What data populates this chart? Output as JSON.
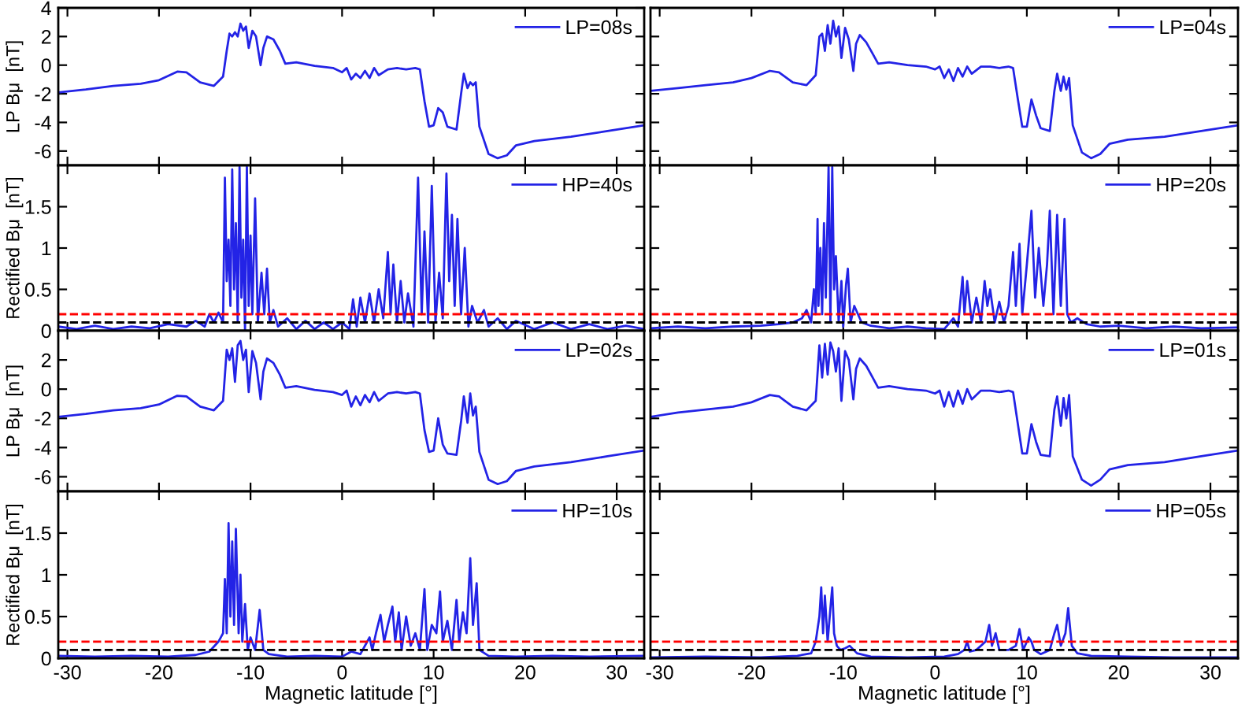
{
  "chart_data": [
    {
      "type": "line",
      "ylabel": "LP Bμ  [nT]",
      "legend": "top right",
      "tick_labels": "y",
      "xlim": [
        -31,
        33
      ],
      "xticks": [
        -30,
        -20,
        -10,
        0,
        10,
        20,
        30
      ],
      "ylim": [
        -7,
        4
      ],
      "yticks": [
        -6,
        -4,
        -2,
        0,
        2,
        4
      ],
      "x": [
        -31,
        -28,
        -25,
        -22,
        -20,
        -18,
        -17,
        -15.5,
        -14,
        -13,
        -12.6,
        -12.3,
        -12,
        -11.7,
        -11.4,
        -11.1,
        -10.8,
        -10.5,
        -10.2,
        -9.8,
        -9.4,
        -8.9,
        -8.6,
        -8.2,
        -7.5,
        -6.8,
        -6.2,
        -5,
        -3,
        -1,
        0,
        0.5,
        1,
        1.5,
        2,
        2.5,
        3,
        3.5,
        4,
        5,
        6,
        7,
        8,
        8.5,
        9,
        9.5,
        10,
        10.5,
        11,
        11.5,
        12.5,
        13,
        13.3,
        13.7,
        14,
        14.3,
        14.6,
        15,
        16,
        17,
        18,
        19,
        21,
        25,
        29,
        33
      ],
      "series": [
        {
          "name": "LP=08s",
          "color": "#2323e6",
          "values": [
            -1.9,
            -1.7,
            -1.45,
            -1.3,
            -1.05,
            -0.45,
            -0.5,
            -1.2,
            -1.45,
            -0.8,
            1.0,
            2.2,
            2.0,
            2.3,
            2.0,
            2.9,
            2.4,
            2.7,
            1.2,
            2.4,
            2.0,
            0.0,
            1.2,
            2.0,
            1.8,
            1.0,
            0.1,
            0.2,
            -0.05,
            -0.2,
            -0.5,
            -0.2,
            -1.0,
            -0.6,
            -0.9,
            -0.4,
            -0.9,
            -0.2,
            -0.7,
            -0.3,
            -0.2,
            -0.3,
            -0.2,
            -0.3,
            -2.5,
            -4.3,
            -4.2,
            -3.0,
            -3.3,
            -4.3,
            -4.5,
            -2.0,
            -0.6,
            -1.6,
            -1.2,
            -1.4,
            -1.2,
            -4.3,
            -6.2,
            -6.5,
            -6.3,
            -5.6,
            -5.3,
            -5.0,
            -4.6,
            -4.2
          ]
        }
      ]
    },
    {
      "type": "line",
      "legend": "top right",
      "tick_labels": false,
      "xlim": [
        -31,
        33
      ],
      "xticks": [
        -30,
        -20,
        -10,
        0,
        10,
        20,
        30
      ],
      "ylim": [
        -7,
        4
      ],
      "yticks": [
        -6,
        -4,
        -2,
        0,
        2,
        4
      ],
      "x": [
        -31,
        -28,
        -25,
        -22,
        -20,
        -18,
        -17,
        -15.5,
        -14,
        -13,
        -12.6,
        -12.3,
        -12,
        -11.7,
        -11.4,
        -11.1,
        -10.8,
        -10.5,
        -10.2,
        -9.8,
        -9.4,
        -8.9,
        -8.6,
        -8.2,
        -7.5,
        -6.8,
        -6.2,
        -5,
        -3,
        -1,
        0,
        0.5,
        1,
        1.5,
        2,
        2.5,
        3,
        3.5,
        4,
        5,
        6,
        7,
        8,
        8.5,
        9,
        9.5,
        10,
        10.5,
        11,
        11.5,
        12.5,
        13,
        13.3,
        13.7,
        14,
        14.3,
        14.6,
        15,
        16,
        17,
        18,
        19,
        21,
        25,
        29,
        33
      ],
      "series": [
        {
          "name": "LP=04s",
          "color": "#2323e6",
          "values": [
            -1.8,
            -1.6,
            -1.4,
            -1.2,
            -0.9,
            -0.4,
            -0.5,
            -1.2,
            -1.4,
            -0.7,
            2.0,
            2.2,
            1.0,
            2.8,
            1.5,
            3.1,
            2.0,
            2.7,
            0.5,
            2.6,
            1.8,
            -0.4,
            1.5,
            2.1,
            1.6,
            0.8,
            0.1,
            0.2,
            0.0,
            -0.1,
            -0.3,
            -0.1,
            -0.9,
            -0.3,
            -1.1,
            -0.2,
            -0.8,
            -0.1,
            -0.6,
            -0.1,
            -0.1,
            -0.2,
            -0.1,
            -0.2,
            -2.3,
            -4.3,
            -4.3,
            -2.4,
            -3.5,
            -4.4,
            -4.6,
            -1.8,
            -0.6,
            -1.8,
            -0.8,
            -1.7,
            -0.9,
            -4.2,
            -6.1,
            -6.5,
            -6.2,
            -5.5,
            -5.2,
            -5.0,
            -4.6,
            -4.2
          ]
        }
      ]
    },
    {
      "type": "line",
      "ylabel": "Rectified Bμ  [nT]",
      "legend": "top right",
      "tick_labels": "y",
      "xlim": [
        -31,
        33
      ],
      "xticks": [
        -30,
        -20,
        -10,
        0,
        10,
        20,
        30
      ],
      "ylim": [
        0,
        2
      ],
      "yticks": [
        0,
        0.5,
        1,
        1.5
      ],
      "ref_lines": [
        {
          "axis": "y",
          "value": 0.2,
          "color": "#ff0000",
          "line_style": "dashed"
        },
        {
          "axis": "y",
          "value": 0.1,
          "color": "#000000",
          "line_style": "dashed"
        }
      ],
      "x": [
        -31,
        -29,
        -27,
        -25,
        -23,
        -21,
        -19,
        -17,
        -16,
        -15,
        -14.5,
        -14,
        -13.5,
        -13,
        -12.8,
        -12.6,
        -12.4,
        -12.2,
        -12,
        -11.8,
        -11.6,
        -11.4,
        -11.2,
        -11,
        -10.8,
        -10.6,
        -10.4,
        -10.2,
        -10,
        -9.8,
        -9.5,
        -9.2,
        -8.8,
        -8.5,
        -8.2,
        -7.9,
        -7.5,
        -7,
        -6,
        -5,
        -4,
        -3,
        -2,
        -1,
        0,
        0.8,
        1.2,
        1.6,
        2,
        2.5,
        3,
        3.5,
        4,
        4.5,
        5,
        5.3,
        5.6,
        6,
        6.4,
        6.8,
        7.2,
        7.8,
        8.3,
        8.7,
        9,
        9.4,
        9.8,
        10.2,
        10.6,
        11,
        11.4,
        11.7,
        12,
        12.3,
        12.6,
        13,
        13.4,
        13.8,
        14.2,
        14.8,
        15.5,
        16,
        17,
        18,
        19,
        21,
        23,
        25,
        27,
        29,
        31,
        33
      ],
      "series": [
        {
          "name": "HP=40s",
          "color": "#2323e6",
          "values": [
            0.05,
            0.02,
            0.06,
            0.02,
            0.05,
            0.03,
            0.08,
            0.05,
            0.12,
            0.05,
            0.2,
            0.1,
            0.22,
            0.1,
            1.85,
            0.6,
            1.1,
            0.3,
            1.95,
            0.5,
            1.3,
            0.1,
            1.98,
            0.4,
            1.1,
            0.0,
            1.98,
            0.3,
            1.15,
            0.2,
            1.6,
            0.1,
            0.7,
            0.2,
            0.75,
            0.1,
            0.25,
            0.05,
            0.15,
            0.02,
            0.12,
            0.02,
            0.1,
            0.02,
            0.1,
            0.02,
            0.38,
            0.05,
            0.4,
            0.1,
            0.45,
            0.1,
            0.5,
            0.15,
            0.95,
            0.2,
            0.8,
            0.1,
            0.6,
            0.1,
            0.45,
            0.05,
            1.85,
            0.2,
            1.2,
            0.1,
            1.75,
            0.1,
            0.7,
            0.15,
            1.9,
            0.6,
            1.4,
            0.3,
            1.35,
            0.2,
            1.0,
            0.05,
            0.3,
            0.1,
            0.25,
            0.05,
            0.15,
            0.02,
            0.12,
            0.02,
            0.1,
            0.02,
            0.08,
            0.02,
            0.06,
            0.02
          ]
        }
      ]
    },
    {
      "type": "line",
      "legend": "top right",
      "tick_labels": false,
      "xlim": [
        -31,
        33
      ],
      "xticks": [
        -30,
        -20,
        -10,
        0,
        10,
        20,
        30
      ],
      "ylim": [
        0,
        2
      ],
      "yticks": [
        0,
        0.5,
        1,
        1.5
      ],
      "ref_lines": [
        {
          "axis": "y",
          "value": 0.2,
          "color": "#ff0000",
          "line_style": "dashed"
        },
        {
          "axis": "y",
          "value": 0.1,
          "color": "#000000",
          "line_style": "dashed"
        }
      ],
      "x": [
        -31,
        -28,
        -25,
        -22,
        -19,
        -17,
        -15.5,
        -14.5,
        -14,
        -13.5,
        -13.2,
        -13,
        -12.8,
        -12.7,
        -12.5,
        -12.3,
        -12.1,
        -11.9,
        -11.6,
        -11.4,
        -11.2,
        -11,
        -10.8,
        -10.5,
        -10.2,
        -10,
        -9.7,
        -9.5,
        -9.2,
        -8.8,
        -8,
        -7,
        -5,
        -3,
        -1,
        1,
        2,
        2.5,
        3,
        3.2,
        3.5,
        4,
        4.5,
        5,
        5.4,
        5.7,
        6,
        6.5,
        7,
        7.5,
        8,
        8.5,
        8.8,
        9.2,
        9.5,
        10,
        10.5,
        10.9,
        11.3,
        11.8,
        12.2,
        12.5,
        12.9,
        13.3,
        13.7,
        14.1,
        14.4,
        14.8,
        15.5,
        16.5,
        18,
        20,
        23,
        26,
        29,
        33
      ],
      "series": [
        {
          "name": "HP=20s",
          "color": "#2323e6",
          "values": [
            0.03,
            0.05,
            0.03,
            0.05,
            0.06,
            0.08,
            0.1,
            0.15,
            0.25,
            0.1,
            0.5,
            0.2,
            1.35,
            0.3,
            1.0,
            0.2,
            1.3,
            0.4,
            1.98,
            0.1,
            1.98,
            0.5,
            0.9,
            0.1,
            0.6,
            0.05,
            0.55,
            0.75,
            0.1,
            0.3,
            0.1,
            0.06,
            0.03,
            0.05,
            0.03,
            0.02,
            0.15,
            0.05,
            0.65,
            0.2,
            0.6,
            0.1,
            0.4,
            0.1,
            0.6,
            0.3,
            0.5,
            0.1,
            0.35,
            0.1,
            0.3,
            0.95,
            0.3,
            1.05,
            0.2,
            0.8,
            1.45,
            0.4,
            1.0,
            0.3,
            0.8,
            1.45,
            0.2,
            1.4,
            0.3,
            1.35,
            0.2,
            0.1,
            0.15,
            0.08,
            0.05,
            0.06,
            0.03,
            0.05,
            0.03,
            0.04
          ]
        }
      ]
    },
    {
      "type": "line",
      "ylabel": "LP Bμ  [nT]",
      "legend": "top right",
      "tick_labels": "y",
      "xlim": [
        -31,
        33
      ],
      "xticks": [
        -30,
        -20,
        -10,
        0,
        10,
        20,
        30
      ],
      "ylim": [
        -7,
        4
      ],
      "yticks": [
        -6,
        -4,
        -2,
        0,
        2
      ],
      "x": [
        -31,
        -28,
        -25,
        -22,
        -20,
        -18,
        -17,
        -15.5,
        -14,
        -13,
        -12.6,
        -12.3,
        -12,
        -11.7,
        -11.4,
        -11.1,
        -10.8,
        -10.5,
        -10.2,
        -9.8,
        -9.4,
        -8.9,
        -8.6,
        -8.2,
        -7.5,
        -6.8,
        -6.2,
        -5,
        -3,
        -1,
        0,
        0.5,
        1,
        1.5,
        2,
        2.5,
        3,
        3.5,
        4,
        5,
        6,
        7,
        8,
        8.5,
        9,
        9.5,
        10,
        10.5,
        11,
        11.5,
        12.5,
        13,
        13.3,
        13.7,
        14,
        14.3,
        14.6,
        15,
        16,
        17,
        18,
        19,
        21,
        25,
        29,
        33
      ],
      "series": [
        {
          "name": "LP=02s",
          "color": "#2323e6",
          "values": [
            -1.9,
            -1.7,
            -1.45,
            -1.3,
            -1.05,
            -0.45,
            -0.5,
            -1.2,
            -1.45,
            -0.8,
            2.7,
            2.0,
            2.8,
            0.5,
            3.0,
            3.3,
            2.0,
            2.7,
            -0.2,
            2.6,
            1.8,
            -0.7,
            1.2,
            2.1,
            1.8,
            1.0,
            0.1,
            0.2,
            -0.05,
            -0.2,
            -0.4,
            -0.1,
            -1.2,
            -0.5,
            -1.1,
            -0.4,
            -0.9,
            -0.2,
            -0.8,
            -0.3,
            -0.2,
            -0.3,
            -0.2,
            -0.3,
            -2.8,
            -4.3,
            -4.2,
            -2.0,
            -3.8,
            -4.4,
            -4.5,
            -2.2,
            -0.5,
            -2.3,
            -0.3,
            -1.8,
            -1.2,
            -4.3,
            -6.2,
            -6.5,
            -6.3,
            -5.6,
            -5.3,
            -5.0,
            -4.6,
            -4.2
          ]
        }
      ]
    },
    {
      "type": "line",
      "legend": "top right",
      "tick_labels": false,
      "xlim": [
        -31,
        33
      ],
      "xticks": [
        -30,
        -20,
        -10,
        0,
        10,
        20,
        30
      ],
      "ylim": [
        -7,
        4
      ],
      "yticks": [
        -6,
        -4,
        -2,
        0,
        2
      ],
      "x": [
        -31,
        -28,
        -25,
        -22,
        -20,
        -18,
        -17,
        -15.5,
        -14,
        -13,
        -12.6,
        -12.3,
        -12,
        -11.7,
        -11.4,
        -11.1,
        -10.8,
        -10.5,
        -10.2,
        -9.8,
        -9.4,
        -8.9,
        -8.6,
        -8.2,
        -7.5,
        -6.8,
        -6.2,
        -5,
        -3,
        -1,
        0,
        0.5,
        1,
        1.5,
        2,
        2.5,
        3,
        3.5,
        4,
        5,
        6,
        7,
        8,
        8.5,
        9,
        9.5,
        10,
        10.5,
        11,
        11.5,
        12.5,
        13,
        13.3,
        13.7,
        14,
        14.3,
        14.6,
        15,
        16,
        17,
        18,
        19,
        21,
        25,
        29,
        33
      ],
      "series": [
        {
          "name": "LP=01s",
          "color": "#2323e6",
          "values": [
            -1.9,
            -1.6,
            -1.4,
            -1.2,
            -0.9,
            -0.4,
            -0.5,
            -1.2,
            -1.45,
            -0.8,
            3.0,
            0.8,
            3.1,
            1.0,
            3.2,
            2.6,
            1.2,
            2.8,
            -0.8,
            2.6,
            2.0,
            -0.7,
            1.4,
            2.1,
            1.6,
            0.8,
            0.1,
            0.2,
            0.0,
            -0.1,
            -0.3,
            -0.1,
            -1.2,
            -0.2,
            -1.2,
            -0.1,
            -1.0,
            0.0,
            -0.7,
            -0.1,
            -0.1,
            -0.2,
            -0.1,
            -0.2,
            -2.3,
            -4.4,
            -4.4,
            -2.4,
            -3.6,
            -4.5,
            -4.6,
            -1.4,
            -0.5,
            -2.5,
            -0.6,
            -2.0,
            -0.4,
            -4.6,
            -6.2,
            -6.6,
            -6.2,
            -5.5,
            -5.2,
            -5.0,
            -4.6,
            -4.2
          ]
        }
      ]
    },
    {
      "type": "line",
      "ylabel": "Rectified Bμ  [nT]",
      "xlabel": "Magnetic latitude [°]",
      "legend": "top right",
      "xlim": [
        -31,
        33
      ],
      "xticks": [
        -30,
        -20,
        -10,
        0,
        10,
        20,
        30
      ],
      "ylim": [
        0,
        2
      ],
      "yticks": [
        0,
        0.5,
        1,
        1.5
      ],
      "ref_lines": [
        {
          "axis": "y",
          "value": 0.2,
          "color": "#ff0000",
          "line_style": "dashed"
        },
        {
          "axis": "y",
          "value": 0.1,
          "color": "#000000",
          "line_style": "dashed"
        }
      ],
      "x": [
        -31,
        -27,
        -23,
        -19,
        -16,
        -14.5,
        -13.5,
        -13,
        -12.8,
        -12.6,
        -12.4,
        -12.2,
        -12,
        -11.8,
        -11.6,
        -11.3,
        -11.1,
        -10.9,
        -10.6,
        -10.3,
        -10,
        -9.5,
        -9,
        -8.6,
        -8,
        -6,
        -3,
        0,
        1,
        2,
        3,
        3.3,
        3.7,
        4.2,
        4.6,
        5,
        5.5,
        5.8,
        6.2,
        6.5,
        7,
        7.5,
        8,
        8.5,
        9,
        9.3,
        9.8,
        10.3,
        10.7,
        11,
        11.5,
        12,
        12.5,
        12.8,
        13.2,
        13.6,
        14,
        14.3,
        14.7,
        15,
        16,
        19,
        23,
        27,
        33
      ],
      "series": [
        {
          "name": "HP=10s",
          "color": "#2323e6",
          "values": [
            0.03,
            0.02,
            0.03,
            0.02,
            0.04,
            0.08,
            0.2,
            0.3,
            0.95,
            0.3,
            1.62,
            0.5,
            1.4,
            0.4,
            1.55,
            0.3,
            1.0,
            0.2,
            0.65,
            0.1,
            0.25,
            0.1,
            0.58,
            0.1,
            0.05,
            0.02,
            0.03,
            0.02,
            0.08,
            0.05,
            0.25,
            0.1,
            0.3,
            0.52,
            0.2,
            0.4,
            0.62,
            0.2,
            0.55,
            0.1,
            0.5,
            0.15,
            0.3,
            0.1,
            0.83,
            0.1,
            0.4,
            0.3,
            0.8,
            0.2,
            0.45,
            0.1,
            0.7,
            0.2,
            0.55,
            0.3,
            1.2,
            0.4,
            0.9,
            0.1,
            0.03,
            0.02,
            0.03,
            0.02,
            0.03
          ]
        }
      ]
    },
    {
      "type": "line",
      "xlabel": "Magnetic latitude [°]",
      "legend": "top right",
      "tick_labels": "x",
      "xlim": [
        -31,
        33
      ],
      "xticks": [
        -30,
        -20,
        -10,
        0,
        10,
        20,
        30
      ],
      "ylim": [
        0,
        2
      ],
      "yticks": [
        0,
        0.5,
        1,
        1.5
      ],
      "ref_lines": [
        {
          "axis": "y",
          "value": 0.2,
          "color": "#ff0000",
          "line_style": "dashed"
        },
        {
          "axis": "y",
          "value": 0.1,
          "color": "#000000",
          "line_style": "dashed"
        }
      ],
      "x": [
        -31,
        -25,
        -19,
        -15,
        -13.5,
        -13,
        -12.6,
        -12.4,
        -12.2,
        -12,
        -11.7,
        -11.4,
        -11.2,
        -11,
        -10.7,
        -10.3,
        -9.8,
        -9.3,
        -8.5,
        -7,
        -3,
        1,
        2.5,
        3.2,
        3.5,
        3.8,
        4.5,
        5.5,
        5.9,
        6.2,
        6.6,
        7,
        8,
        8.8,
        9.2,
        9.6,
        10.2,
        10.5,
        10.8,
        11.5,
        12.5,
        13,
        13.3,
        13.7,
        14.2,
        14.5,
        14.9,
        15.5,
        17,
        21,
        26,
        33
      ],
      "series": [
        {
          "name": "HP=05s",
          "color": "#2323e6",
          "values": [
            0.01,
            0.02,
            0.01,
            0.03,
            0.06,
            0.2,
            0.5,
            0.85,
            0.3,
            0.75,
            0.2,
            0.6,
            0.85,
            0.3,
            0.15,
            0.1,
            0.12,
            0.15,
            0.06,
            0.02,
            0.01,
            0.02,
            0.05,
            0.1,
            0.2,
            0.08,
            0.1,
            0.2,
            0.4,
            0.15,
            0.3,
            0.1,
            0.1,
            0.15,
            0.35,
            0.1,
            0.25,
            0.2,
            0.1,
            0.05,
            0.1,
            0.3,
            0.4,
            0.15,
            0.3,
            0.6,
            0.15,
            0.06,
            0.03,
            0.02,
            0.01,
            0.01
          ]
        }
      ]
    }
  ]
}
